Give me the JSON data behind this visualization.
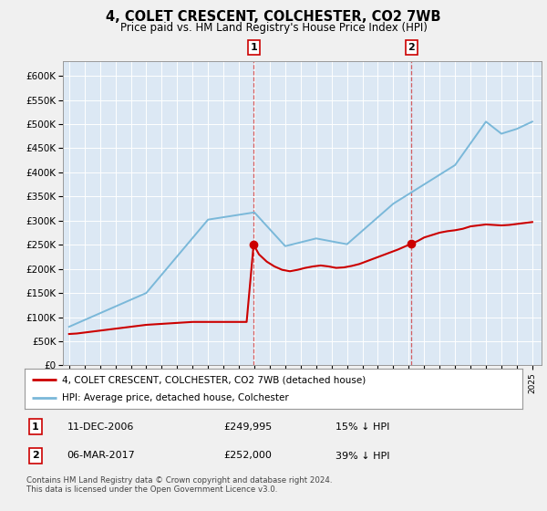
{
  "title": "4, COLET CRESCENT, COLCHESTER, CO2 7WB",
  "subtitle": "Price paid vs. HM Land Registry's House Price Index (HPI)",
  "ylabel_ticks": [
    "£0",
    "£50K",
    "£100K",
    "£150K",
    "£200K",
    "£250K",
    "£300K",
    "£350K",
    "£400K",
    "£450K",
    "£500K",
    "£550K",
    "£600K"
  ],
  "ytick_vals": [
    0,
    50000,
    100000,
    150000,
    200000,
    250000,
    300000,
    350000,
    400000,
    450000,
    500000,
    550000,
    600000
  ],
  "ylim": [
    0,
    630000
  ],
  "xlim_start": 1994.6,
  "xlim_end": 2025.6,
  "hpi_color": "#7ab8d9",
  "price_color": "#cc0000",
  "sale1_x": 2006.95,
  "sale1_y": 249995,
  "sale2_x": 2017.18,
  "sale2_y": 252000,
  "legend_line1": "4, COLET CRESCENT, COLCHESTER, CO2 7WB (detached house)",
  "legend_line2": "HPI: Average price, detached house, Colchester",
  "footnote": "Contains HM Land Registry data © Crown copyright and database right 2024.\nThis data is licensed under the Open Government Licence v3.0.",
  "outer_bg": "#f0f0f0",
  "plot_bg_color": "#dce8f4"
}
